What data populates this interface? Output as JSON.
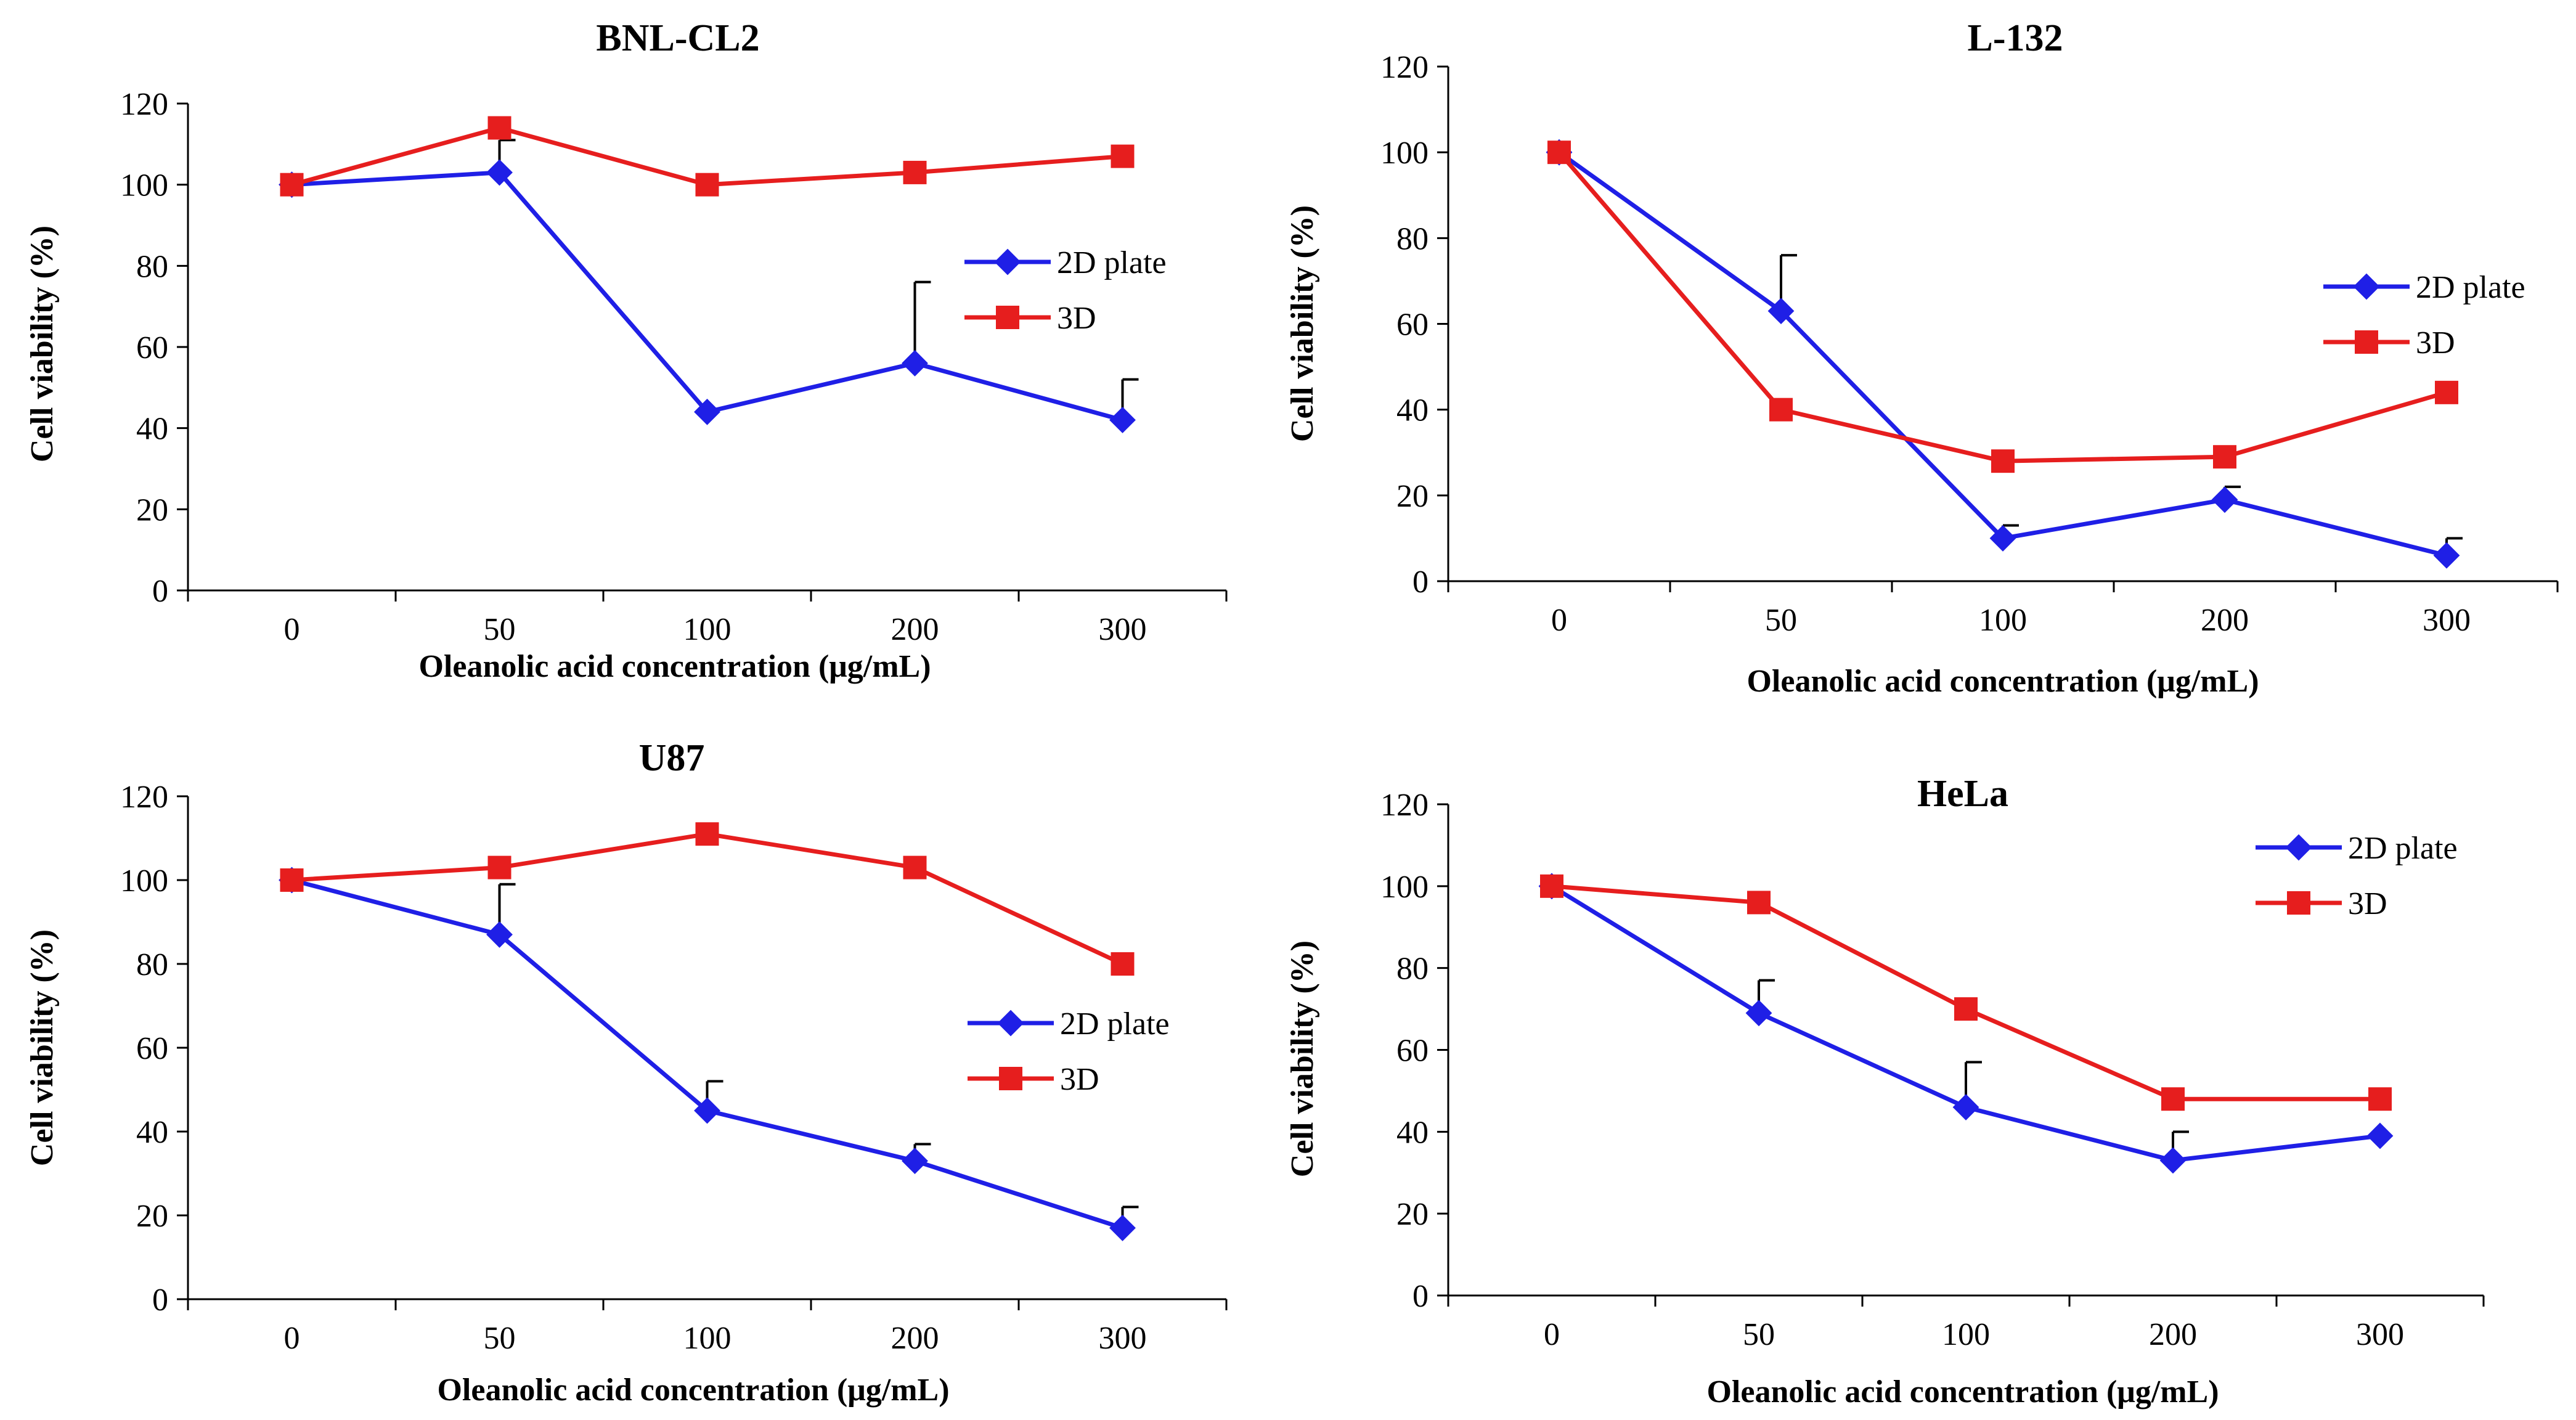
{
  "colors": {
    "series_2d": "#1f1fe6",
    "series_3d": "#e61e1e",
    "axis": "#000000"
  },
  "chart_data": [
    {
      "type": "line",
      "title": "BNL-CL2",
      "xlabel": "Oleanolic acid concentration  (μg/mL)",
      "ylabel": "Cell viability (%)",
      "categories": [
        "0",
        "50",
        "100",
        "200",
        "300"
      ],
      "yticks": [
        "0",
        "20",
        "40",
        "60",
        "80",
        "100",
        "120"
      ],
      "ylim": [
        0,
        120
      ],
      "legend_position": "right-middle",
      "series": [
        {
          "name": "2D plate",
          "marker": "diamond",
          "color": "#1f1fe6",
          "values": [
            100,
            103,
            44,
            56,
            42
          ],
          "errors": [
            0,
            8,
            0,
            20,
            10
          ]
        },
        {
          "name": "3D",
          "marker": "square",
          "color": "#e61e1e",
          "values": [
            100,
            114,
            100,
            103,
            107
          ],
          "errors": [
            0,
            0,
            0,
            0,
            0
          ]
        }
      ]
    },
    {
      "type": "line",
      "title": "L-132",
      "xlabel": "Oleanolic acid concentration  (μg/mL)",
      "ylabel": "Cell viability (%)",
      "categories": [
        "0",
        "50",
        "100",
        "200",
        "300"
      ],
      "yticks": [
        "0",
        "20",
        "40",
        "60",
        "80",
        "100",
        "120"
      ],
      "ylim": [
        0,
        120
      ],
      "legend_position": "right-middle",
      "series": [
        {
          "name": "2D plate",
          "marker": "diamond",
          "color": "#1f1fe6",
          "values": [
            100,
            63,
            10,
            19,
            6
          ],
          "errors": [
            0,
            13,
            3,
            3,
            4
          ]
        },
        {
          "name": "3D",
          "marker": "square",
          "color": "#e61e1e",
          "values": [
            100,
            40,
            28,
            29,
            44
          ],
          "errors": [
            0,
            0,
            0,
            0,
            0
          ]
        }
      ]
    },
    {
      "type": "line",
      "title": "U87",
      "xlabel": "Oleanolic acid concentration  (μg/mL)",
      "ylabel": "Cell viability (%)",
      "categories": [
        "0",
        "50",
        "100",
        "200",
        "300"
      ],
      "yticks": [
        "0",
        "20",
        "40",
        "60",
        "80",
        "100",
        "120"
      ],
      "ylim": [
        0,
        120
      ],
      "legend_position": "right-middle",
      "series": [
        {
          "name": "2D plate",
          "marker": "diamond",
          "color": "#1f1fe6",
          "values": [
            100,
            87,
            45,
            33,
            17
          ],
          "errors": [
            0,
            12,
            7,
            4,
            5
          ]
        },
        {
          "name": "3D",
          "marker": "square",
          "color": "#e61e1e",
          "values": [
            100,
            103,
            111,
            103,
            80
          ],
          "errors": [
            0,
            0,
            0,
            0,
            0
          ]
        }
      ]
    },
    {
      "type": "line",
      "title": "HeLa",
      "xlabel": "Oleanolic acid concentration  (μg/mL)",
      "ylabel": "Cell viability (%)",
      "categories": [
        "0",
        "50",
        "100",
        "200",
        "300"
      ],
      "yticks": [
        "0",
        "20",
        "40",
        "60",
        "80",
        "100",
        "120"
      ],
      "ylim": [
        0,
        120
      ],
      "legend_position": "top-right",
      "series": [
        {
          "name": "2D plate",
          "marker": "diamond",
          "color": "#1f1fe6",
          "values": [
            100,
            69,
            46,
            33,
            39
          ],
          "errors": [
            0,
            8,
            11,
            7,
            0
          ]
        },
        {
          "name": "3D",
          "marker": "square",
          "color": "#e61e1e",
          "values": [
            100,
            96,
            70,
            48,
            48
          ],
          "errors": [
            0,
            0,
            0,
            0,
            0
          ]
        }
      ]
    }
  ]
}
